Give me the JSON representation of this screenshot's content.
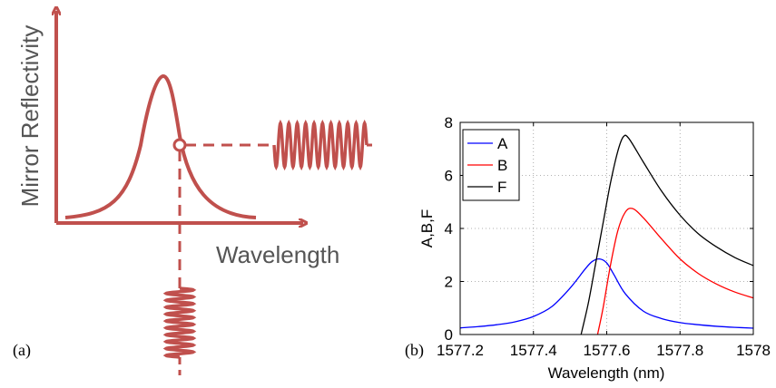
{
  "panel_a": {
    "label": "(a)",
    "ylabel": "Mirror Reflectivity",
    "xlabel": "Wavelength",
    "color": "#c0504d"
  },
  "panel_b": {
    "label": "(b)"
  },
  "chart_data": {
    "type": "line",
    "title": "",
    "xlabel": "Wavelength (nm)",
    "ylabel": "A,B,F",
    "xlim": [
      1577.2,
      1578
    ],
    "ylim": [
      0,
      8
    ],
    "xticks": [
      1577.2,
      1577.4,
      1577.6,
      1577.8,
      1578
    ],
    "xtick_labels": [
      "1577.2",
      "1577.4",
      "1577.6",
      "1577.8",
      "1578"
    ],
    "yticks": [
      0,
      2,
      4,
      6,
      8
    ],
    "ytick_labels": [
      "0",
      "2",
      "4",
      "6",
      "8"
    ],
    "grid": true,
    "legend_position": "top-left",
    "series": [
      {
        "name": "A",
        "color": "#0000ff",
        "x": [
          1577.2,
          1577.25,
          1577.3,
          1577.35,
          1577.4,
          1577.45,
          1577.5,
          1577.54,
          1577.56,
          1577.58,
          1577.6,
          1577.62,
          1577.65,
          1577.7,
          1577.75,
          1577.8,
          1577.85,
          1577.9,
          1577.95,
          1578.0
        ],
        "y": [
          0.25,
          0.3,
          0.37,
          0.48,
          0.68,
          1.05,
          1.75,
          2.45,
          2.75,
          2.85,
          2.7,
          2.25,
          1.55,
          0.88,
          0.6,
          0.45,
          0.37,
          0.31,
          0.27,
          0.24
        ]
      },
      {
        "name": "B",
        "color": "#ff0000",
        "x": [
          1577.575,
          1577.59,
          1577.61,
          1577.63,
          1577.65,
          1577.67,
          1577.7,
          1577.75,
          1577.8,
          1577.85,
          1577.9,
          1577.95,
          1578.0
        ],
        "y": [
          0.0,
          1.0,
          2.6,
          3.9,
          4.6,
          4.75,
          4.4,
          3.6,
          2.85,
          2.3,
          1.9,
          1.6,
          1.38
        ]
      },
      {
        "name": "F",
        "color": "#000000",
        "x": [
          1577.53,
          1577.55,
          1577.57,
          1577.59,
          1577.61,
          1577.63,
          1577.645,
          1577.66,
          1577.7,
          1577.75,
          1577.8,
          1577.85,
          1577.9,
          1577.95,
          1578.0
        ],
        "y": [
          0.0,
          1.2,
          2.7,
          4.2,
          5.7,
          6.9,
          7.45,
          7.4,
          6.5,
          5.4,
          4.5,
          3.8,
          3.3,
          2.9,
          2.6
        ]
      }
    ]
  }
}
